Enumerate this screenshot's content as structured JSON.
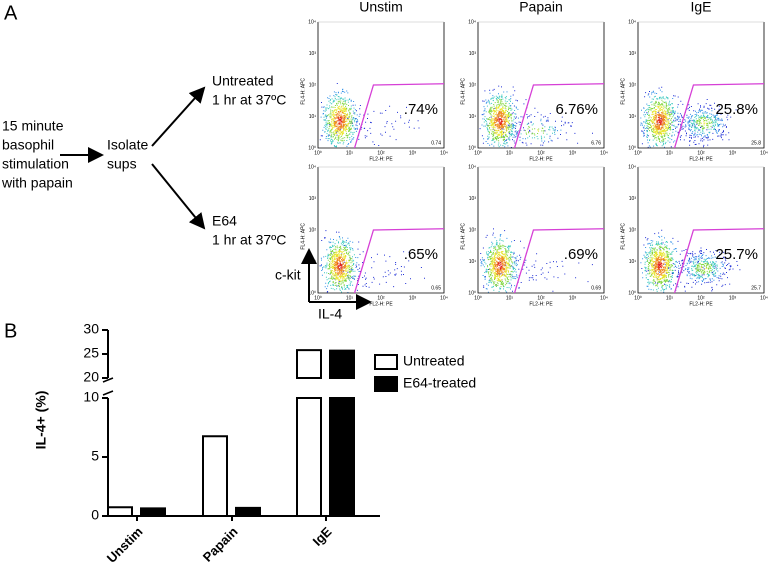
{
  "panel_a": {
    "label": "A",
    "stimulus": [
      "15 minute",
      "basophil",
      "stimulation",
      "with papain"
    ],
    "isolate": [
      "Isolate",
      "sups"
    ],
    "conditions": [
      {
        "name": "Untreated",
        "detail": "1 hr at 37ºC"
      },
      {
        "name": "E64",
        "detail": "1 hr at 37ºC"
      }
    ],
    "columns": [
      "Unstim",
      "Papain",
      "IgE"
    ],
    "plots": [
      [
        {
          "percent": ".74%",
          "corner": "0.74"
        },
        {
          "percent": "6.76%",
          "corner": "6.76"
        },
        {
          "percent": "25.8%",
          "corner": "25.8"
        }
      ],
      [
        {
          "percent": ".65%",
          "corner": "0.65"
        },
        {
          "percent": ".69%",
          "corner": "0.69"
        },
        {
          "percent": "25.7%",
          "corner": "25.7"
        }
      ]
    ],
    "y_axis_label": "FL4-H: APC",
    "x_axis_label": "FL2-H: PE",
    "tick_labels": [
      "10⁰",
      "10¹",
      "10²",
      "10³",
      "10⁴"
    ],
    "y_marker": "c-kit",
    "x_marker": "IL-4"
  },
  "chart_data": {
    "type": "bar",
    "panel_label": "B",
    "y_label": "IL-4+ (%)",
    "categories": [
      "Unstim",
      "Papain",
      "IgE"
    ],
    "series": [
      {
        "name": "Untreated",
        "color": "#ffffff",
        "values": [
          0.74,
          6.76,
          25.8
        ]
      },
      {
        "name": "E64-treated",
        "color": "#000000",
        "values": [
          0.65,
          0.69,
          25.7
        ]
      }
    ],
    "ylim": [
      0,
      30
    ],
    "y_segments": [
      {
        "ylim": [
          0,
          10
        ],
        "yticks": [
          0,
          5,
          10
        ]
      },
      {
        "ylim": [
          20,
          30
        ],
        "yticks": [
          20,
          25,
          30
        ]
      }
    ],
    "legend": "upper right"
  }
}
